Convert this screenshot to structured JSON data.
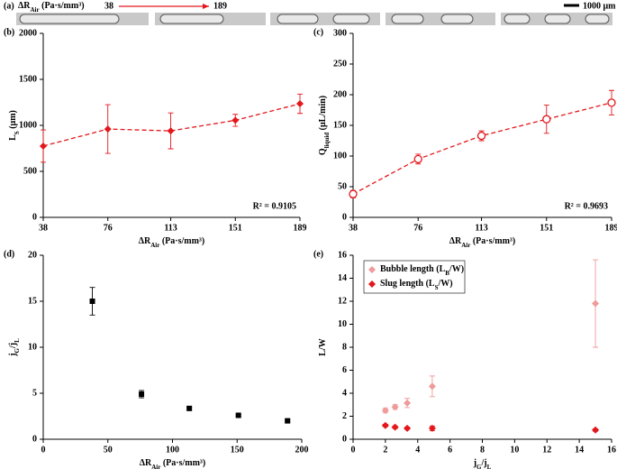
{
  "figure_a": {
    "label": "(a)",
    "parameter": [
      "ΔR",
      "Air",
      " (Pa·s/mm³)"
    ],
    "start": "38",
    "end": "189",
    "scale_bar": "1000 μm"
  },
  "chart_data": [
    {
      "type": "line",
      "panel_label": "(b)",
      "x": [
        38,
        76,
        113,
        151,
        189
      ],
      "xlim": [
        38,
        189
      ],
      "xticks": [
        38,
        76,
        113,
        151,
        189
      ],
      "ylim": [
        0,
        2000
      ],
      "yticks": [
        0,
        500,
        1000,
        1500,
        2000
      ],
      "xlabel": [
        "ΔR",
        "Air",
        " (Pa·s/mm³)"
      ],
      "ylabel": [
        "L",
        "S",
        " (μm)"
      ],
      "annotation": "R² = 0.9105",
      "series": [
        {
          "color": "#e3171c",
          "marker": "diamond",
          "line_style": "dashed",
          "values": [
            775,
            960,
            940,
            1055,
            1235
          ],
          "errors": [
            175,
            265,
            195,
            65,
            105
          ]
        }
      ]
    },
    {
      "type": "line",
      "panel_label": "(c)",
      "x": [
        38,
        76,
        113,
        151,
        189
      ],
      "xlim": [
        38,
        189
      ],
      "xticks": [
        38,
        76,
        113,
        151,
        189
      ],
      "ylim": [
        0,
        300
      ],
      "yticks": [
        0,
        50,
        100,
        150,
        200,
        250,
        300
      ],
      "xlabel": [
        "ΔR",
        "Air",
        " (Pa·s/mm³)"
      ],
      "ylabel": [
        "Q",
        "liquid",
        " (μL/min)"
      ],
      "annotation": "R² = 0.9693",
      "series": [
        {
          "color": "#e3171c",
          "marker": "circle-open",
          "line_style": "dashed",
          "values": [
            38,
            95,
            133,
            160,
            187
          ],
          "errors": [
            6,
            8,
            8,
            23,
            20
          ]
        }
      ]
    },
    {
      "type": "scatter",
      "panel_label": "(d)",
      "x": [
        38,
        76,
        113,
        151,
        189
      ],
      "xlim": [
        0,
        200
      ],
      "xticks": [
        0,
        50,
        100,
        150,
        200
      ],
      "ylim": [
        0,
        20
      ],
      "yticks": [
        0,
        5,
        10,
        15,
        20
      ],
      "xlabel": [
        "ΔR",
        "Air",
        " (Pa·s/mm³)"
      ],
      "ylabel": [
        "j",
        "G",
        "/j",
        "L"
      ],
      "series": [
        {
          "color": "#000000",
          "marker": "square",
          "values": [
            15,
            4.9,
            3.35,
            2.6,
            2.0
          ],
          "errors": [
            1.5,
            0.4,
            0.15,
            0.1,
            0.1
          ]
        }
      ]
    },
    {
      "type": "scatter",
      "panel_label": "(e)",
      "x": [
        2.0,
        2.6,
        3.35,
        4.9,
        15
      ],
      "xlim": [
        0,
        16
      ],
      "xticks": [
        0,
        2,
        4,
        6,
        8,
        10,
        12,
        14,
        16
      ],
      "ylim": [
        0,
        16
      ],
      "yticks": [
        0,
        2,
        4,
        6,
        8,
        10,
        12,
        14,
        16
      ],
      "xlabel": [
        "j",
        "G",
        "/j",
        "L"
      ],
      "ylabel": [
        "L/W"
      ],
      "legend": "upper left",
      "series": [
        {
          "name": [
            "Bubble length (L",
            "B",
            "/W)"
          ],
          "color": "#f09a9a",
          "marker": "diamond",
          "values": [
            2.5,
            2.8,
            3.15,
            4.6,
            11.8
          ],
          "errors": [
            0.2,
            0.2,
            0.4,
            0.9,
            3.8
          ]
        },
        {
          "name": [
            "Slug length (L",
            "S",
            "/W)"
          ],
          "color": "#e3171c",
          "marker": "diamond",
          "values": [
            1.2,
            1.05,
            0.95,
            0.95,
            0.8
          ],
          "errors": [
            0.1,
            0.1,
            0.1,
            0.2,
            0.1
          ]
        }
      ]
    }
  ]
}
